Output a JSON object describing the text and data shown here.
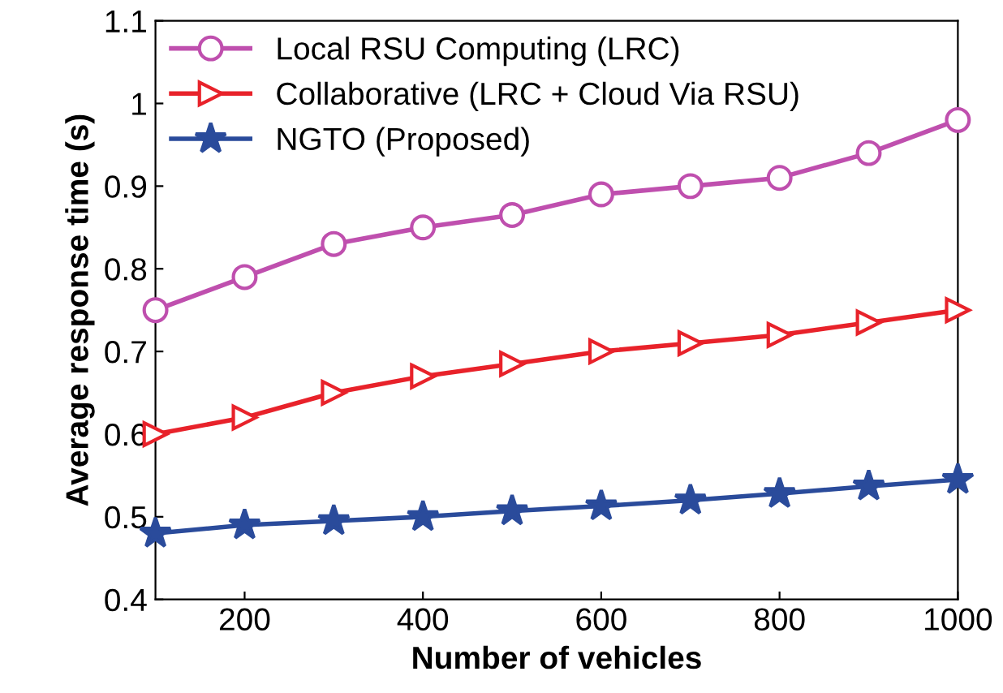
{
  "chart_data": {
    "type": "line",
    "xlabel": "Number of vehicles",
    "ylabel": "Average response time (s)",
    "x": [
      100,
      200,
      300,
      400,
      500,
      600,
      700,
      800,
      900,
      1000
    ],
    "series": [
      {
        "name": "Local RSU Computing (LRC)",
        "color": "#bf4fae",
        "marker": "circle",
        "values": [
          0.75,
          0.79,
          0.83,
          0.85,
          0.865,
          0.89,
          0.9,
          0.91,
          0.94,
          0.98
        ]
      },
      {
        "name": "Collaborative (LRC + Cloud Via RSU)",
        "color": "#e8222a",
        "marker": "triangle",
        "values": [
          0.6,
          0.62,
          0.65,
          0.67,
          0.685,
          0.7,
          0.71,
          0.72,
          0.735,
          0.75
        ]
      },
      {
        "name": "NGTO (Proposed)",
        "color": "#2a4b9b",
        "marker": "star",
        "values": [
          0.48,
          0.49,
          0.495,
          0.5,
          0.507,
          0.513,
          0.52,
          0.528,
          0.537,
          0.545
        ]
      }
    ],
    "xlim": [
      100,
      1000
    ],
    "xticks": [
      200,
      400,
      600,
      800,
      1000
    ],
    "ylim": [
      0.4,
      1.1
    ],
    "yticks": [
      0.4,
      0.5,
      0.6,
      0.7,
      0.8,
      0.9,
      1,
      1.1
    ],
    "legend": "top left",
    "grid": false,
    "line_style": "solid"
  }
}
